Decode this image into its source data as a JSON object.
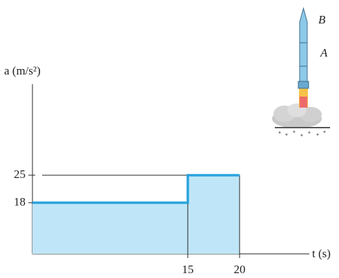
{
  "chart_data": {
    "type": "step",
    "y_label": "a (m/s²)",
    "x_label": "t (s)",
    "x": [
      0,
      15,
      15,
      20
    ],
    "values": [
      18,
      18,
      25,
      25
    ],
    "color": "#29a3dd",
    "fill": "#bfe6f8",
    "xlim": [
      0,
      27
    ],
    "ylim": [
      5,
      52
    ],
    "xticks": [
      15,
      20
    ],
    "yticks": [
      18,
      25
    ],
    "annotations": [
      "B",
      "A"
    ]
  }
}
